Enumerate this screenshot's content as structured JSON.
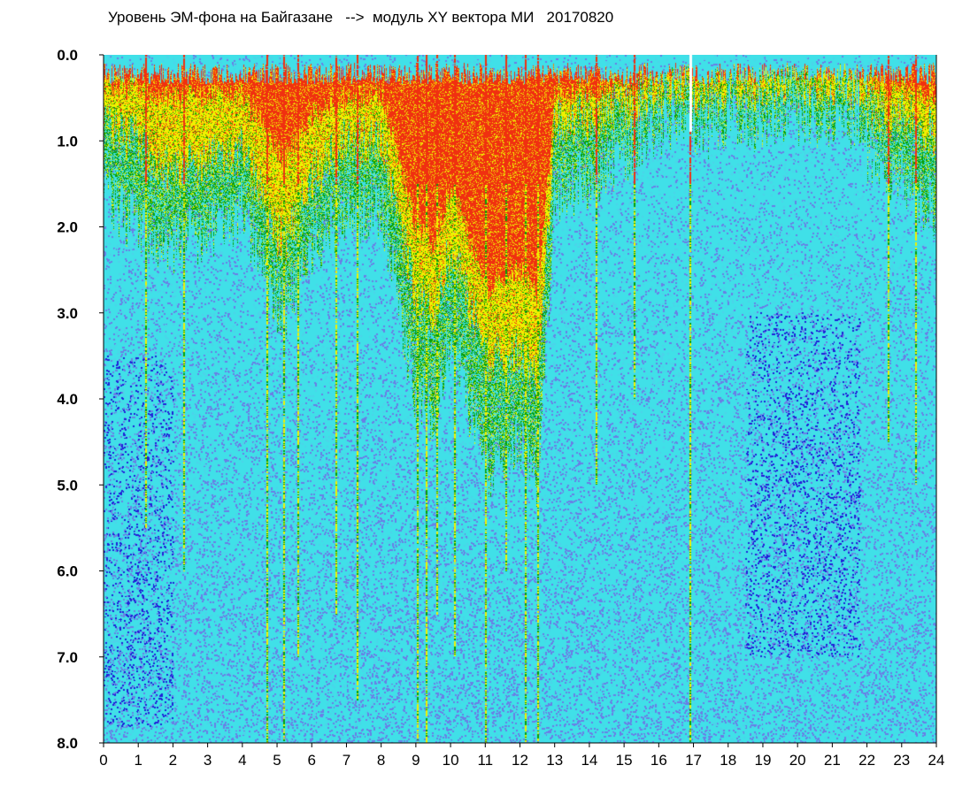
{
  "chart_data": {
    "type": "heatmap",
    "title": "Уровень ЭМ-фона на Байгазане   -->  модуль XY вектора МИ   20170820",
    "xlabel": "",
    "ylabel": "",
    "x_range": [
      0,
      24
    ],
    "y_range": [
      0,
      8
    ],
    "y_inverted": true,
    "x_ticks": [
      "0",
      "1",
      "2",
      "3",
      "4",
      "5",
      "6",
      "7",
      "8",
      "9",
      "10",
      "11",
      "12",
      "13",
      "14",
      "15",
      "16",
      "17",
      "18",
      "19",
      "20",
      "21",
      "22",
      "23",
      "24"
    ],
    "y_ticks": [
      "0.0",
      "1.0",
      "2.0",
      "3.0",
      "4.0",
      "5.0",
      "6.0",
      "7.0",
      "8.0"
    ],
    "grid": false,
    "colors": {
      "background": "#40e0e8",
      "low_dark": "#2020d8",
      "low": "#6a7ee6",
      "mid": "#4cd3ea",
      "high": "#08a008",
      "higher": "#f0f000",
      "max": "#f03010"
    },
    "band_profile": {
      "hours": [
        0,
        1,
        2,
        3,
        4,
        4.7,
        5.2,
        6,
        7,
        8,
        9,
        9.5,
        10,
        11,
        12,
        12.5,
        13,
        14,
        15,
        16,
        16.8,
        17.2,
        18,
        19,
        20,
        21,
        21.8,
        22,
        23,
        24
      ],
      "red_to": [
        0.35,
        0.4,
        0.5,
        0.45,
        0.45,
        0.9,
        1.2,
        0.7,
        0.5,
        0.45,
        2.0,
        2.2,
        1.5,
        2.7,
        2.5,
        2.8,
        0.45,
        0.4,
        0.35,
        0.2,
        0.15,
        0.25,
        0.15,
        0.2,
        0.15,
        0.15,
        0.15,
        0.3,
        0.35,
        0.45
      ],
      "yellow_to": [
        0.8,
        1.0,
        1.4,
        1.2,
        1.1,
        1.8,
        2.2,
        1.4,
        1.0,
        1.0,
        2.8,
        3.0,
        2.2,
        3.5,
        3.5,
        3.8,
        0.8,
        0.7,
        0.6,
        0.4,
        0.3,
        0.5,
        0.35,
        0.4,
        0.35,
        0.35,
        0.35,
        0.6,
        0.7,
        0.9
      ],
      "green_to": [
        1.6,
        2.0,
        2.2,
        2.0,
        1.8,
        2.6,
        3.0,
        2.2,
        1.8,
        1.8,
        4.0,
        4.2,
        3.2,
        4.8,
        4.5,
        5.0,
        1.6,
        1.4,
        1.1,
        0.8,
        0.6,
        0.9,
        0.7,
        0.8,
        0.7,
        0.7,
        0.7,
        1.1,
        1.4,
        1.8
      ]
    },
    "blue_zones": [
      {
        "hour_from": 18.5,
        "hour_to": 21.8,
        "depth_from": 3.0,
        "depth_to": 7.0
      },
      {
        "hour_from": 0.0,
        "hour_to": 2.0,
        "depth_from": 3.5,
        "depth_to": 7.8
      }
    ],
    "spikes": [
      {
        "hour": 1.2,
        "to": 5.5
      },
      {
        "hour": 2.3,
        "to": 6.0
      },
      {
        "hour": 4.7,
        "to": 8.0
      },
      {
        "hour": 5.2,
        "to": 8.0
      },
      {
        "hour": 5.6,
        "to": 7.0
      },
      {
        "hour": 6.7,
        "to": 6.5
      },
      {
        "hour": 7.3,
        "to": 7.5
      },
      {
        "hour": 9.05,
        "to": 8.0
      },
      {
        "hour": 9.3,
        "to": 8.0
      },
      {
        "hour": 9.6,
        "to": 6.5
      },
      {
        "hour": 10.1,
        "to": 7.0
      },
      {
        "hour": 11.0,
        "to": 8.0
      },
      {
        "hour": 11.6,
        "to": 6.0
      },
      {
        "hour": 12.15,
        "to": 8.0
      },
      {
        "hour": 12.5,
        "to": 8.0
      },
      {
        "hour": 14.2,
        "to": 5.0
      },
      {
        "hour": 15.3,
        "to": 4.0
      },
      {
        "hour": 16.9,
        "to": 8.0
      },
      {
        "hour": 22.6,
        "to": 4.5
      },
      {
        "hour": 23.4,
        "to": 5.0
      }
    ]
  }
}
